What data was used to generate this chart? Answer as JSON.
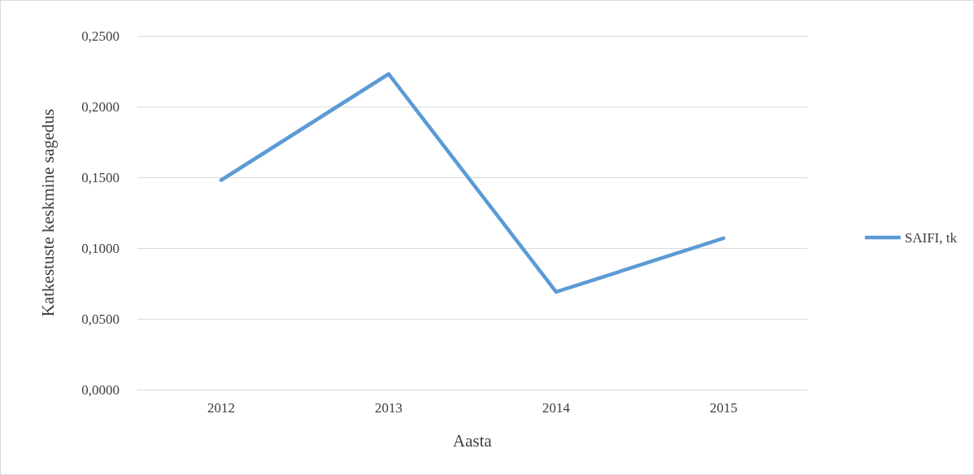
{
  "chart_data": {
    "type": "line",
    "xlabel": "Aasta",
    "ylabel": "Katkestuste keskmine sagedus",
    "categories": [
      "2012",
      "2013",
      "2014",
      "2015"
    ],
    "series": [
      {
        "name": "SAIFI, tk",
        "color": "#5b9bd5",
        "values": [
          0.148,
          0.223,
          0.069,
          0.107
        ]
      }
    ],
    "ylim": [
      0,
      0.25
    ],
    "yticks": [
      {
        "value": 0,
        "label": "0,0000"
      },
      {
        "value": 0.05,
        "label": "0,0500"
      },
      {
        "value": 0.1,
        "label": "0,1000"
      },
      {
        "value": 0.15,
        "label": "0,1500"
      },
      {
        "value": 0.2,
        "label": "0,2000"
      },
      {
        "value": 0.25,
        "label": "0,2500"
      }
    ],
    "grid": "y",
    "legend": "right",
    "marker": "none",
    "line_style": "solid"
  }
}
